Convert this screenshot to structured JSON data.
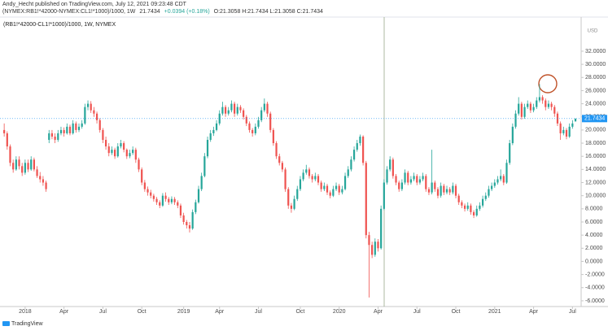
{
  "header": {
    "line1": "Andy_Hecht published on TradingView.com, July 12, 2021 09:23:48 CDT",
    "symbol": "(NYMEX:RB1!*42000-NYMEX:CL1!*1000)/1000, 1W",
    "last": "21.7434",
    "change": "+0.0394 (+0.18%)",
    "ohlc": "O:21.3058 H:21.7434 L:21.3058 C:21.7434"
  },
  "footer": "TradingView",
  "chart_data": {
    "type": "candlestick",
    "title": "(RB1!*42000-CL1!*1000)/1000, 1W, NYMEX",
    "y_axis_label": "USD",
    "up_color": "#26a69a",
    "down_color": "#ef5350",
    "xlim": [
      -1.4,
      192.9
    ],
    "ylim": [
      -7,
      36.7
    ],
    "xticks": [
      {
        "value": 7,
        "label": "2018"
      },
      {
        "value": 20,
        "label": "Apr"
      },
      {
        "value": 33,
        "label": "Jul"
      },
      {
        "value": 46,
        "label": "Oct"
      },
      {
        "value": 60,
        "label": "2019"
      },
      {
        "value": 72,
        "label": "Apr"
      },
      {
        "value": 85,
        "label": "Jul"
      },
      {
        "value": 99,
        "label": "Oct"
      },
      {
        "value": 112,
        "label": "2020"
      },
      {
        "value": 125,
        "label": "Apr"
      },
      {
        "value": 138,
        "label": "Jul"
      },
      {
        "value": 151,
        "label": "Oct"
      },
      {
        "value": 164,
        "label": "2021"
      },
      {
        "value": 177,
        "label": "Apr"
      },
      {
        "value": 190,
        "label": "Jul"
      }
    ],
    "yticks": [
      {
        "value": -6,
        "label": "-6.0000"
      },
      {
        "value": -4,
        "label": "-4.0000"
      },
      {
        "value": -2,
        "label": "-2.0000"
      },
      {
        "value": 0,
        "label": "0.0000"
      },
      {
        "value": 2,
        "label": "2.0000"
      },
      {
        "value": 4,
        "label": "4.0000"
      },
      {
        "value": 6,
        "label": "6.0000"
      },
      {
        "value": 8,
        "label": "8.0000"
      },
      {
        "value": 10,
        "label": "10.0000"
      },
      {
        "value": 12,
        "label": "12.0000"
      },
      {
        "value": 14,
        "label": "14.0000"
      },
      {
        "value": 16,
        "label": "16.0000"
      },
      {
        "value": 18,
        "label": "18.0000"
      },
      {
        "value": 20,
        "label": "20.0000"
      },
      {
        "value": 22,
        "label": "22.0000"
      },
      {
        "value": 24,
        "label": "24.0000"
      },
      {
        "value": 26,
        "label": "26.0000"
      },
      {
        "value": 28,
        "label": "28.0000"
      },
      {
        "value": 30,
        "label": "30.0000"
      },
      {
        "value": 32,
        "label": "32.0000"
      }
    ],
    "candles": [
      [
        20,
        21,
        19,
        19.5
      ],
      [
        19.5,
        19.8,
        17,
        17.5
      ],
      [
        17.5,
        17.8,
        14.5,
        15
      ],
      [
        15,
        15.5,
        13.5,
        14
      ],
      [
        14,
        16,
        13.8,
        15.5
      ],
      [
        15.5,
        16,
        14,
        14.5
      ],
      [
        14.5,
        15,
        13,
        13.5
      ],
      [
        13.5,
        15.5,
        13.2,
        15
      ],
      [
        15,
        15.5,
        13.6,
        14
      ],
      [
        14,
        16,
        13.8,
        15.5
      ],
      [
        15.5,
        15.8,
        13.7,
        14
      ],
      [
        14,
        14.5,
        12.7,
        13
      ],
      [
        13,
        13.6,
        12,
        12.5
      ],
      [
        12.5,
        13,
        11.5,
        12
      ],
      [
        12,
        12.3,
        10.6,
        11
      ],
      [
        18.5,
        20,
        18,
        19.5
      ],
      [
        19.5,
        20,
        18.6,
        19
      ],
      [
        19,
        19.5,
        18,
        18.5
      ],
      [
        18.5,
        20,
        18.2,
        19.5
      ],
      [
        19.5,
        20.5,
        19.2,
        20
      ],
      [
        20,
        20.4,
        19,
        19.5
      ],
      [
        19.5,
        21,
        19.3,
        20.5
      ],
      [
        20.5,
        20.8,
        19.2,
        19.5
      ],
      [
        19.5,
        21.5,
        19.3,
        21
      ],
      [
        21,
        21.3,
        19.6,
        20
      ],
      [
        20,
        21,
        19.7,
        20.5
      ],
      [
        20.5,
        21.5,
        20.2,
        21
      ],
      [
        21,
        24,
        20.8,
        23.5
      ],
      [
        23.5,
        24.5,
        23,
        24
      ],
      [
        24,
        24.4,
        22.6,
        23
      ],
      [
        23,
        23.5,
        22,
        22.5
      ],
      [
        22.5,
        22.8,
        21,
        21.5
      ],
      [
        21.5,
        21.8,
        19.6,
        20
      ],
      [
        20,
        20.3,
        18,
        18.5
      ],
      [
        18.5,
        19,
        17,
        17.5
      ],
      [
        17.5,
        18,
        16,
        16.5
      ],
      [
        16.5,
        17.5,
        16.2,
        17
      ],
      [
        17,
        17.3,
        15.6,
        16
      ],
      [
        16,
        18,
        15.8,
        17.5
      ],
      [
        17.5,
        18.5,
        17.2,
        18
      ],
      [
        18,
        18.3,
        16.6,
        17
      ],
      [
        17,
        17.2,
        15.6,
        16
      ],
      [
        16,
        17,
        15.7,
        16.5
      ],
      [
        16.5,
        17.5,
        16.2,
        17
      ],
      [
        17,
        17.3,
        15,
        15.5
      ],
      [
        15.5,
        15.8,
        13.6,
        14
      ],
      [
        14,
        14.3,
        11.6,
        12
      ],
      [
        12,
        12.4,
        10.6,
        11
      ],
      [
        11,
        11.4,
        10,
        10.5
      ],
      [
        10.5,
        10.9,
        9.6,
        10
      ],
      [
        10,
        10.3,
        9.1,
        9.5
      ],
      [
        9.5,
        9.8,
        8.6,
        9
      ],
      [
        9,
        9.3,
        8.1,
        8.5
      ],
      [
        8.5,
        10.4,
        8.3,
        10
      ],
      [
        10,
        10.5,
        9.1,
        9.5
      ],
      [
        9.5,
        9.8,
        8.6,
        9
      ],
      [
        9,
        9.9,
        8.7,
        9.5
      ],
      [
        9.5,
        9.8,
        8.6,
        9
      ],
      [
        9,
        9.3,
        8.1,
        8.5
      ],
      [
        8.5,
        8.8,
        6.6,
        7
      ],
      [
        7,
        7.4,
        5.6,
        6
      ],
      [
        6,
        6.3,
        5,
        5.5
      ],
      [
        5.5,
        6,
        4.4,
        5
      ],
      [
        5,
        7.9,
        4.8,
        7.5
      ],
      [
        7.5,
        9.4,
        7.2,
        9
      ],
      [
        9,
        11.5,
        8.8,
        11
      ],
      [
        11,
        13.5,
        10.7,
        13
      ],
      [
        13,
        16.5,
        12.8,
        16
      ],
      [
        16,
        19,
        15.7,
        18.5
      ],
      [
        18.5,
        20,
        18.2,
        19.5
      ],
      [
        19.5,
        20.5,
        19.1,
        20
      ],
      [
        20,
        21.5,
        19.8,
        21
      ],
      [
        21,
        23,
        20.7,
        22.5
      ],
      [
        22.5,
        24.3,
        22.2,
        23.5
      ],
      [
        23.5,
        23.8,
        22,
        22.5
      ],
      [
        22.5,
        23.5,
        22.2,
        23
      ],
      [
        23,
        24.5,
        22.7,
        24
      ],
      [
        24,
        24.3,
        22,
        22.5
      ],
      [
        22.5,
        24,
        22.2,
        23.5
      ],
      [
        23.5,
        23.8,
        22.6,
        23
      ],
      [
        23,
        23.3,
        21.6,
        22
      ],
      [
        22,
        22.3,
        20.6,
        21
      ],
      [
        21,
        21.3,
        19.6,
        20
      ],
      [
        20,
        20.3,
        19,
        19.5
      ],
      [
        19.5,
        21,
        19.2,
        20.5
      ],
      [
        20.5,
        22,
        20.2,
        21.5
      ],
      [
        21.5,
        23.5,
        21.2,
        23
      ],
      [
        23,
        24.8,
        22.7,
        24
      ],
      [
        24,
        24.3,
        22,
        22.5
      ],
      [
        22.5,
        22.8,
        19.6,
        20
      ],
      [
        20,
        20.3,
        17.6,
        18
      ],
      [
        18,
        18.3,
        15.6,
        16
      ],
      [
        16,
        16.4,
        14.6,
        15
      ],
      [
        15,
        15.3,
        13.6,
        14
      ],
      [
        14,
        14.3,
        10.6,
        11
      ],
      [
        11,
        11.3,
        8,
        8.5
      ],
      [
        8.5,
        8.9,
        7.4,
        8
      ],
      [
        8,
        10,
        7.8,
        9.5
      ],
      [
        9.5,
        11.5,
        9.2,
        11
      ],
      [
        11,
        13,
        10.7,
        12.5
      ],
      [
        12.5,
        14,
        12.2,
        13.5
      ],
      [
        13.5,
        14.7,
        13.2,
        14
      ],
      [
        14,
        14.3,
        12.6,
        13
      ],
      [
        13,
        13.3,
        12,
        12.5
      ],
      [
        12.5,
        13.5,
        12.2,
        13
      ],
      [
        13,
        13.3,
        11.6,
        12
      ],
      [
        12,
        12.3,
        10.6,
        11
      ],
      [
        11,
        12,
        10.7,
        11.5
      ],
      [
        11.5,
        11.8,
        10.1,
        10.5
      ],
      [
        10.5,
        10.8,
        9.6,
        10
      ],
      [
        10,
        11.5,
        9.8,
        11
      ],
      [
        11,
        12,
        10.7,
        11.5
      ],
      [
        11.5,
        11.8,
        10.1,
        10.5
      ],
      [
        10.5,
        11.5,
        10.2,
        11
      ],
      [
        11,
        13.5,
        10.8,
        13
      ],
      [
        13,
        14.5,
        12.7,
        14
      ],
      [
        14,
        16,
        13.7,
        15.5
      ],
      [
        15.5,
        17.5,
        15.2,
        17
      ],
      [
        17,
        18.5,
        16.7,
        18
      ],
      [
        18,
        19.3,
        17.6,
        19
      ],
      [
        19,
        19.2,
        14.6,
        15
      ],
      [
        15,
        15.3,
        3.5,
        4
      ],
      [
        4,
        4.5,
        -5.5,
        2.5
      ],
      [
        2.5,
        3,
        0.5,
        1
      ],
      [
        1,
        3.5,
        0.7,
        3
      ],
      [
        3,
        3.4,
        1.5,
        2
      ],
      [
        2,
        8.5,
        1.8,
        8
      ],
      [
        8,
        12.5,
        7.8,
        12
      ],
      [
        12,
        14.5,
        11.7,
        14
      ],
      [
        14,
        16,
        13.7,
        15.5
      ],
      [
        15.5,
        15.8,
        12.6,
        13
      ],
      [
        13,
        13.3,
        11.6,
        12
      ],
      [
        12,
        12.3,
        10.6,
        11
      ],
      [
        11,
        12.5,
        10.7,
        12
      ],
      [
        12,
        14,
        11.7,
        13.5
      ],
      [
        13.5,
        13.8,
        11.6,
        12
      ],
      [
        12,
        13,
        11.7,
        12.5
      ],
      [
        12.5,
        13.5,
        12.2,
        13
      ],
      [
        13,
        13.3,
        11.6,
        12
      ],
      [
        12,
        13,
        11.7,
        12.5
      ],
      [
        12.5,
        13.5,
        12.2,
        13
      ],
      [
        13,
        13.3,
        10.6,
        11
      ],
      [
        11,
        11.3,
        10.1,
        10.5
      ],
      [
        10.5,
        17,
        10.2,
        12
      ],
      [
        12,
        12.3,
        10.6,
        11
      ],
      [
        11,
        11.3,
        9.6,
        10
      ],
      [
        10,
        12,
        9.7,
        11.5
      ],
      [
        11.5,
        11.8,
        10.1,
        10.5
      ],
      [
        10.5,
        11.5,
        10.2,
        11
      ],
      [
        11,
        11.3,
        10.1,
        10.5
      ],
      [
        10.5,
        12,
        10.2,
        11.5
      ],
      [
        11.5,
        11.8,
        9.6,
        10
      ],
      [
        10,
        10.3,
        8.6,
        9
      ],
      [
        9,
        9.3,
        8.1,
        8.5
      ],
      [
        8.5,
        8.8,
        7.6,
        8
      ],
      [
        8,
        9,
        7.7,
        8.5
      ],
      [
        8.5,
        8.8,
        7.1,
        7.5
      ],
      [
        7.5,
        7.8,
        6.6,
        7
      ],
      [
        7,
        8.5,
        6.8,
        8
      ],
      [
        8,
        9,
        7.7,
        8.5
      ],
      [
        8.5,
        10,
        8.2,
        9.5
      ],
      [
        9.5,
        10.5,
        9.2,
        10
      ],
      [
        10,
        11.5,
        9.7,
        11
      ],
      [
        11,
        12,
        10.7,
        11.5
      ],
      [
        11.5,
        12.5,
        11.2,
        12
      ],
      [
        12,
        13,
        11.7,
        12.5
      ],
      [
        12.5,
        14,
        12.2,
        13
      ],
      [
        13,
        13.3,
        11.6,
        12
      ],
      [
        12,
        15.5,
        11.8,
        15
      ],
      [
        15,
        18.5,
        14.7,
        18
      ],
      [
        18,
        21,
        17.7,
        20.5
      ],
      [
        20.5,
        23,
        20.2,
        22.5
      ],
      [
        22.5,
        25,
        22.2,
        24
      ],
      [
        24,
        24.3,
        21.6,
        22
      ],
      [
        22,
        24,
        21.7,
        23.5
      ],
      [
        23.5,
        24.5,
        23.2,
        24
      ],
      [
        24,
        24.3,
        22.6,
        23
      ],
      [
        23,
        24,
        22.7,
        23.5
      ],
      [
        23.5,
        25,
        23.2,
        24.5
      ],
      [
        24.5,
        27,
        24.2,
        25
      ],
      [
        25,
        25.3,
        24,
        24.5
      ],
      [
        24.5,
        24.8,
        23,
        23.5
      ],
      [
        23.5,
        24.5,
        23.2,
        24
      ],
      [
        24,
        24.3,
        23,
        23.5
      ],
      [
        23.5,
        23.8,
        22,
        22.5
      ],
      [
        22.5,
        22.8,
        20.6,
        21
      ],
      [
        21,
        21.3,
        18.5,
        19.5
      ],
      [
        19.5,
        20.5,
        19.2,
        20
      ],
      [
        20,
        20.3,
        18.6,
        19
      ],
      [
        19,
        21,
        18.8,
        20.5
      ],
      [
        20.5,
        21.5,
        20.2,
        21
      ],
      [
        21.3058,
        21.7434,
        21.3058,
        21.7434
      ]
    ]
  }
}
